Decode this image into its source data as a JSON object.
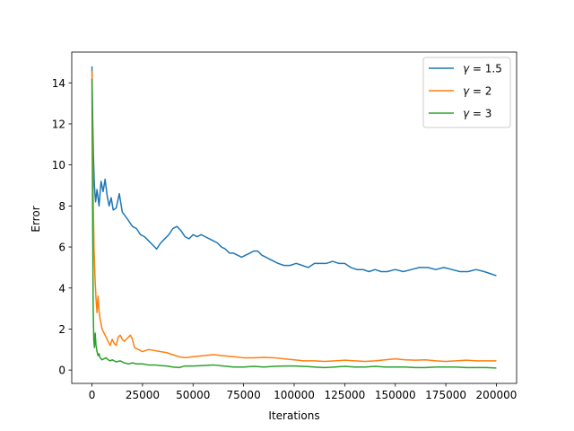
{
  "chart_data": {
    "type": "line",
    "title": "",
    "xlabel": "Iterations",
    "ylabel": "Error",
    "xlim": [
      -10000,
      210000
    ],
    "ylim": [
      -0.65,
      15.5
    ],
    "xticks": [
      0,
      25000,
      50000,
      75000,
      100000,
      125000,
      150000,
      175000,
      200000
    ],
    "xtick_labels": [
      "0",
      "25000",
      "50000",
      "75000",
      "100000",
      "125000",
      "150000",
      "175000",
      "200000"
    ],
    "yticks": [
      0,
      2,
      4,
      6,
      8,
      10,
      12,
      14
    ],
    "ytick_labels": [
      "0",
      "2",
      "4",
      "6",
      "8",
      "10",
      "12",
      "14"
    ],
    "grid": false,
    "legend_position": "top-right",
    "series": [
      {
        "name": "γ = 1.5",
        "legend_symbol": "γ",
        "legend_value": "= 1.5",
        "color": "#1f77b4",
        "points": [
          [
            0,
            14.8
          ],
          [
            300,
            12.5
          ],
          [
            700,
            10.5
          ],
          [
            1200,
            9.0
          ],
          [
            1800,
            8.2
          ],
          [
            2500,
            8.8
          ],
          [
            3500,
            8.0
          ],
          [
            4500,
            9.2
          ],
          [
            5500,
            8.7
          ],
          [
            6500,
            9.3
          ],
          [
            7500,
            8.5
          ],
          [
            8500,
            8.0
          ],
          [
            9500,
            8.4
          ],
          [
            10500,
            7.8
          ],
          [
            12000,
            7.9
          ],
          [
            13500,
            8.6
          ],
          [
            15000,
            7.7
          ],
          [
            16500,
            7.5
          ],
          [
            18000,
            7.3
          ],
          [
            20000,
            7.0
          ],
          [
            22000,
            6.9
          ],
          [
            24000,
            6.6
          ],
          [
            26000,
            6.5
          ],
          [
            28000,
            6.3
          ],
          [
            30000,
            6.1
          ],
          [
            32000,
            5.9
          ],
          [
            34000,
            6.2
          ],
          [
            36000,
            6.4
          ],
          [
            38000,
            6.6
          ],
          [
            40000,
            6.9
          ],
          [
            42000,
            7.0
          ],
          [
            44000,
            6.8
          ],
          [
            46000,
            6.5
          ],
          [
            48000,
            6.4
          ],
          [
            50000,
            6.6
          ],
          [
            52000,
            6.5
          ],
          [
            54000,
            6.6
          ],
          [
            56000,
            6.5
          ],
          [
            58000,
            6.4
          ],
          [
            60000,
            6.3
          ],
          [
            62000,
            6.2
          ],
          [
            64000,
            6.0
          ],
          [
            66000,
            5.9
          ],
          [
            68000,
            5.7
          ],
          [
            70000,
            5.7
          ],
          [
            72000,
            5.6
          ],
          [
            74000,
            5.5
          ],
          [
            76000,
            5.6
          ],
          [
            78000,
            5.7
          ],
          [
            80000,
            5.8
          ],
          [
            82000,
            5.8
          ],
          [
            84000,
            5.6
          ],
          [
            86000,
            5.5
          ],
          [
            88000,
            5.4
          ],
          [
            90000,
            5.3
          ],
          [
            92000,
            5.2
          ],
          [
            95000,
            5.1
          ],
          [
            98000,
            5.1
          ],
          [
            101000,
            5.2
          ],
          [
            104000,
            5.1
          ],
          [
            107000,
            5.0
          ],
          [
            110000,
            5.2
          ],
          [
            113000,
            5.2
          ],
          [
            116000,
            5.2
          ],
          [
            119000,
            5.3
          ],
          [
            122000,
            5.2
          ],
          [
            125000,
            5.2
          ],
          [
            128000,
            5.0
          ],
          [
            131000,
            4.9
          ],
          [
            134000,
            4.9
          ],
          [
            137000,
            4.8
          ],
          [
            140000,
            4.9
          ],
          [
            143000,
            4.8
          ],
          [
            146000,
            4.8
          ],
          [
            150000,
            4.9
          ],
          [
            154000,
            4.8
          ],
          [
            158000,
            4.9
          ],
          [
            162000,
            5.0
          ],
          [
            166000,
            5.0
          ],
          [
            170000,
            4.9
          ],
          [
            174000,
            5.0
          ],
          [
            178000,
            4.9
          ],
          [
            182000,
            4.8
          ],
          [
            186000,
            4.8
          ],
          [
            190000,
            4.9
          ],
          [
            194000,
            4.8
          ],
          [
            197000,
            4.7
          ],
          [
            200000,
            4.6
          ]
        ]
      },
      {
        "name": "γ = 2",
        "legend_symbol": "γ",
        "legend_value": "= 2",
        "color": "#ff7f0e",
        "points": [
          [
            0,
            14.6
          ],
          [
            300,
            11.0
          ],
          [
            600,
            8.5
          ],
          [
            1000,
            6.0
          ],
          [
            1500,
            4.5
          ],
          [
            2000,
            3.5
          ],
          [
            2500,
            2.8
          ],
          [
            3000,
            3.6
          ],
          [
            3500,
            2.9
          ],
          [
            4000,
            2.5
          ],
          [
            5000,
            2.0
          ],
          [
            6000,
            1.8
          ],
          [
            7000,
            1.6
          ],
          [
            8000,
            1.4
          ],
          [
            9000,
            1.2
          ],
          [
            10000,
            1.5
          ],
          [
            11000,
            1.3
          ],
          [
            12000,
            1.2
          ],
          [
            13000,
            1.6
          ],
          [
            14000,
            1.7
          ],
          [
            15000,
            1.5
          ],
          [
            16000,
            1.4
          ],
          [
            17000,
            1.5
          ],
          [
            18000,
            1.6
          ],
          [
            19000,
            1.7
          ],
          [
            20000,
            1.5
          ],
          [
            21000,
            1.1
          ],
          [
            23000,
            1.0
          ],
          [
            25000,
            0.9
          ],
          [
            28000,
            1.0
          ],
          [
            31000,
            0.95
          ],
          [
            34000,
            0.9
          ],
          [
            37000,
            0.85
          ],
          [
            40000,
            0.75
          ],
          [
            43000,
            0.65
          ],
          [
            46000,
            0.6
          ],
          [
            50000,
            0.65
          ],
          [
            55000,
            0.7
          ],
          [
            60000,
            0.75
          ],
          [
            65000,
            0.7
          ],
          [
            70000,
            0.65
          ],
          [
            75000,
            0.6
          ],
          [
            80000,
            0.6
          ],
          [
            85000,
            0.62
          ],
          [
            90000,
            0.6
          ],
          [
            95000,
            0.55
          ],
          [
            100000,
            0.5
          ],
          [
            105000,
            0.45
          ],
          [
            110000,
            0.45
          ],
          [
            115000,
            0.42
          ],
          [
            120000,
            0.45
          ],
          [
            125000,
            0.48
          ],
          [
            130000,
            0.45
          ],
          [
            135000,
            0.42
          ],
          [
            140000,
            0.45
          ],
          [
            145000,
            0.5
          ],
          [
            150000,
            0.55
          ],
          [
            155000,
            0.5
          ],
          [
            160000,
            0.48
          ],
          [
            165000,
            0.5
          ],
          [
            170000,
            0.45
          ],
          [
            175000,
            0.42
          ],
          [
            180000,
            0.45
          ],
          [
            185000,
            0.48
          ],
          [
            190000,
            0.45
          ],
          [
            195000,
            0.45
          ],
          [
            200000,
            0.45
          ]
        ]
      },
      {
        "name": "γ = 3",
        "legend_symbol": "γ",
        "legend_value": "= 3",
        "color": "#2ca02c",
        "points": [
          [
            0,
            14.2
          ],
          [
            300,
            8.0
          ],
          [
            600,
            3.0
          ],
          [
            900,
            1.5
          ],
          [
            1200,
            1.1
          ],
          [
            1600,
            1.8
          ],
          [
            2000,
            1.2
          ],
          [
            2500,
            0.9
          ],
          [
            3000,
            0.7
          ],
          [
            3500,
            0.8
          ],
          [
            4000,
            0.6
          ],
          [
            5000,
            0.5
          ],
          [
            6000,
            0.55
          ],
          [
            7000,
            0.6
          ],
          [
            8000,
            0.5
          ],
          [
            9000,
            0.45
          ],
          [
            10000,
            0.5
          ],
          [
            12000,
            0.4
          ],
          [
            14000,
            0.45
          ],
          [
            16000,
            0.35
          ],
          [
            18000,
            0.3
          ],
          [
            20000,
            0.35
          ],
          [
            22000,
            0.3
          ],
          [
            25000,
            0.3
          ],
          [
            28000,
            0.25
          ],
          [
            31000,
            0.25
          ],
          [
            34000,
            0.22
          ],
          [
            37000,
            0.2
          ],
          [
            40000,
            0.15
          ],
          [
            43000,
            0.12
          ],
          [
            46000,
            0.2
          ],
          [
            50000,
            0.2
          ],
          [
            55000,
            0.22
          ],
          [
            60000,
            0.25
          ],
          [
            65000,
            0.2
          ],
          [
            70000,
            0.15
          ],
          [
            75000,
            0.15
          ],
          [
            80000,
            0.18
          ],
          [
            85000,
            0.15
          ],
          [
            90000,
            0.18
          ],
          [
            95000,
            0.2
          ],
          [
            100000,
            0.2
          ],
          [
            105000,
            0.18
          ],
          [
            110000,
            0.15
          ],
          [
            115000,
            0.12
          ],
          [
            120000,
            0.15
          ],
          [
            125000,
            0.18
          ],
          [
            130000,
            0.15
          ],
          [
            135000,
            0.15
          ],
          [
            140000,
            0.18
          ],
          [
            145000,
            0.15
          ],
          [
            150000,
            0.15
          ],
          [
            155000,
            0.15
          ],
          [
            160000,
            0.12
          ],
          [
            165000,
            0.12
          ],
          [
            170000,
            0.15
          ],
          [
            175000,
            0.15
          ],
          [
            180000,
            0.15
          ],
          [
            185000,
            0.12
          ],
          [
            190000,
            0.12
          ],
          [
            195000,
            0.12
          ],
          [
            200000,
            0.1
          ]
        ]
      }
    ]
  }
}
